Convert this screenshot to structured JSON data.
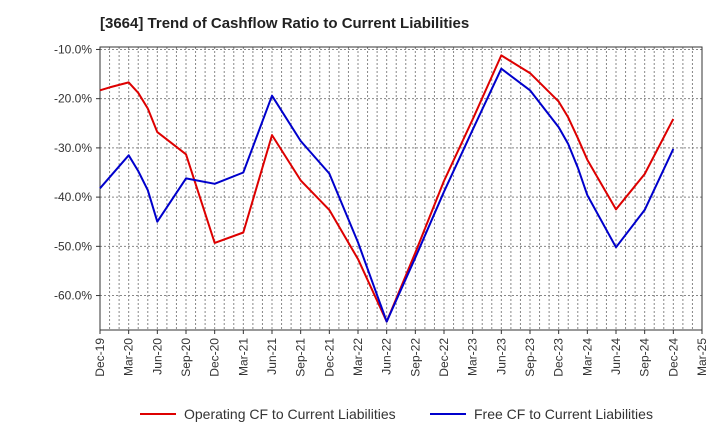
{
  "chart_data": {
    "type": "line",
    "title": "[3664]  Trend of Cashflow Ratio to Current Liabilities",
    "xlabel": "",
    "ylabel": "",
    "x": [
      "Dec-19",
      "Mar-20",
      "Jun-20",
      "Sep-20",
      "Dec-20",
      "Mar-21",
      "Jun-21",
      "Sep-21",
      "Dec-21",
      "Mar-22",
      "Jun-22",
      "Sep-22",
      "Dec-22",
      "Mar-23",
      "Jun-23",
      "Sep-23",
      "Dec-23",
      "Mar-24",
      "Jun-24",
      "Sep-24",
      "Dec-24",
      "Mar-25"
    ],
    "y_ticks": [
      -10,
      -20,
      -30,
      -40,
      -50,
      -60
    ],
    "y_tick_labels": [
      "-10.0%",
      "-20.0%",
      "-30.0%",
      "-40.0%",
      "-50.0%",
      "-60.0%"
    ],
    "ylim": [
      -67,
      -9.5
    ],
    "grid": true,
    "legend_position": "bottom",
    "series": [
      {
        "name": "Operating CF to Current Liabilities",
        "color": "#dd0000",
        "points": [
          [
            "Dec-19",
            -18.3
          ],
          [
            "Jan-20",
            -17.7
          ],
          [
            "Feb-20",
            -17.2
          ],
          [
            "Mar-20",
            -16.7
          ],
          [
            "Apr-20",
            -18.8
          ],
          [
            "May-20",
            -22.0
          ],
          [
            "Jun-20",
            -26.8
          ],
          [
            "Sep-20",
            -31.3
          ],
          [
            "Dec-20",
            -49.3
          ],
          [
            "Mar-21",
            -47.2
          ],
          [
            "Jun-21",
            -27.4
          ],
          [
            "Sep-21",
            -36.6
          ],
          [
            "Dec-21",
            -42.6
          ],
          [
            "Mar-22",
            -52.6
          ],
          [
            "Jun-22",
            -65.3
          ],
          [
            "Sep-22",
            -51.3
          ],
          [
            "Dec-22",
            -36.7
          ],
          [
            "Mar-23",
            -24.2
          ],
          [
            "Jun-23",
            -11.2
          ],
          [
            "Sep-23",
            -14.8
          ],
          [
            "Dec-23",
            -20.6
          ],
          [
            "Jan-24",
            -23.8
          ],
          [
            "Feb-24",
            -28.0
          ],
          [
            "Mar-24",
            -32.4
          ],
          [
            "Jun-24",
            -42.5
          ],
          [
            "Sep-24",
            -35.3
          ],
          [
            "Dec-24",
            -24.1
          ]
        ]
      },
      {
        "name": "Free CF to Current Liabilities",
        "color": "#0000cc",
        "points": [
          [
            "Dec-19",
            -38.2
          ],
          [
            "Mar-20",
            -31.5
          ],
          [
            "Apr-20",
            -34.7
          ],
          [
            "May-20",
            -38.6
          ],
          [
            "Jun-20",
            -45.0
          ],
          [
            "Sep-20",
            -36.2
          ],
          [
            "Dec-20",
            -37.3
          ],
          [
            "Mar-21",
            -35.0
          ],
          [
            "Jun-21",
            -19.4
          ],
          [
            "Sep-21",
            -28.6
          ],
          [
            "Dec-21",
            -35.2
          ],
          [
            "Mar-22",
            -49.2
          ],
          [
            "Jun-22",
            -65.3
          ],
          [
            "Sep-22",
            -52.3
          ],
          [
            "Dec-22",
            -38.9
          ],
          [
            "Mar-23",
            -26.3
          ],
          [
            "Jun-23",
            -13.9
          ],
          [
            "Sep-23",
            -18.3
          ],
          [
            "Dec-23",
            -25.8
          ],
          [
            "Jan-24",
            -29.2
          ],
          [
            "Feb-24",
            -34.0
          ],
          [
            "Mar-24",
            -39.6
          ],
          [
            "Jun-24",
            -50.2
          ],
          [
            "Sep-24",
            -42.6
          ],
          [
            "Dec-24",
            -30.2
          ]
        ]
      }
    ]
  }
}
